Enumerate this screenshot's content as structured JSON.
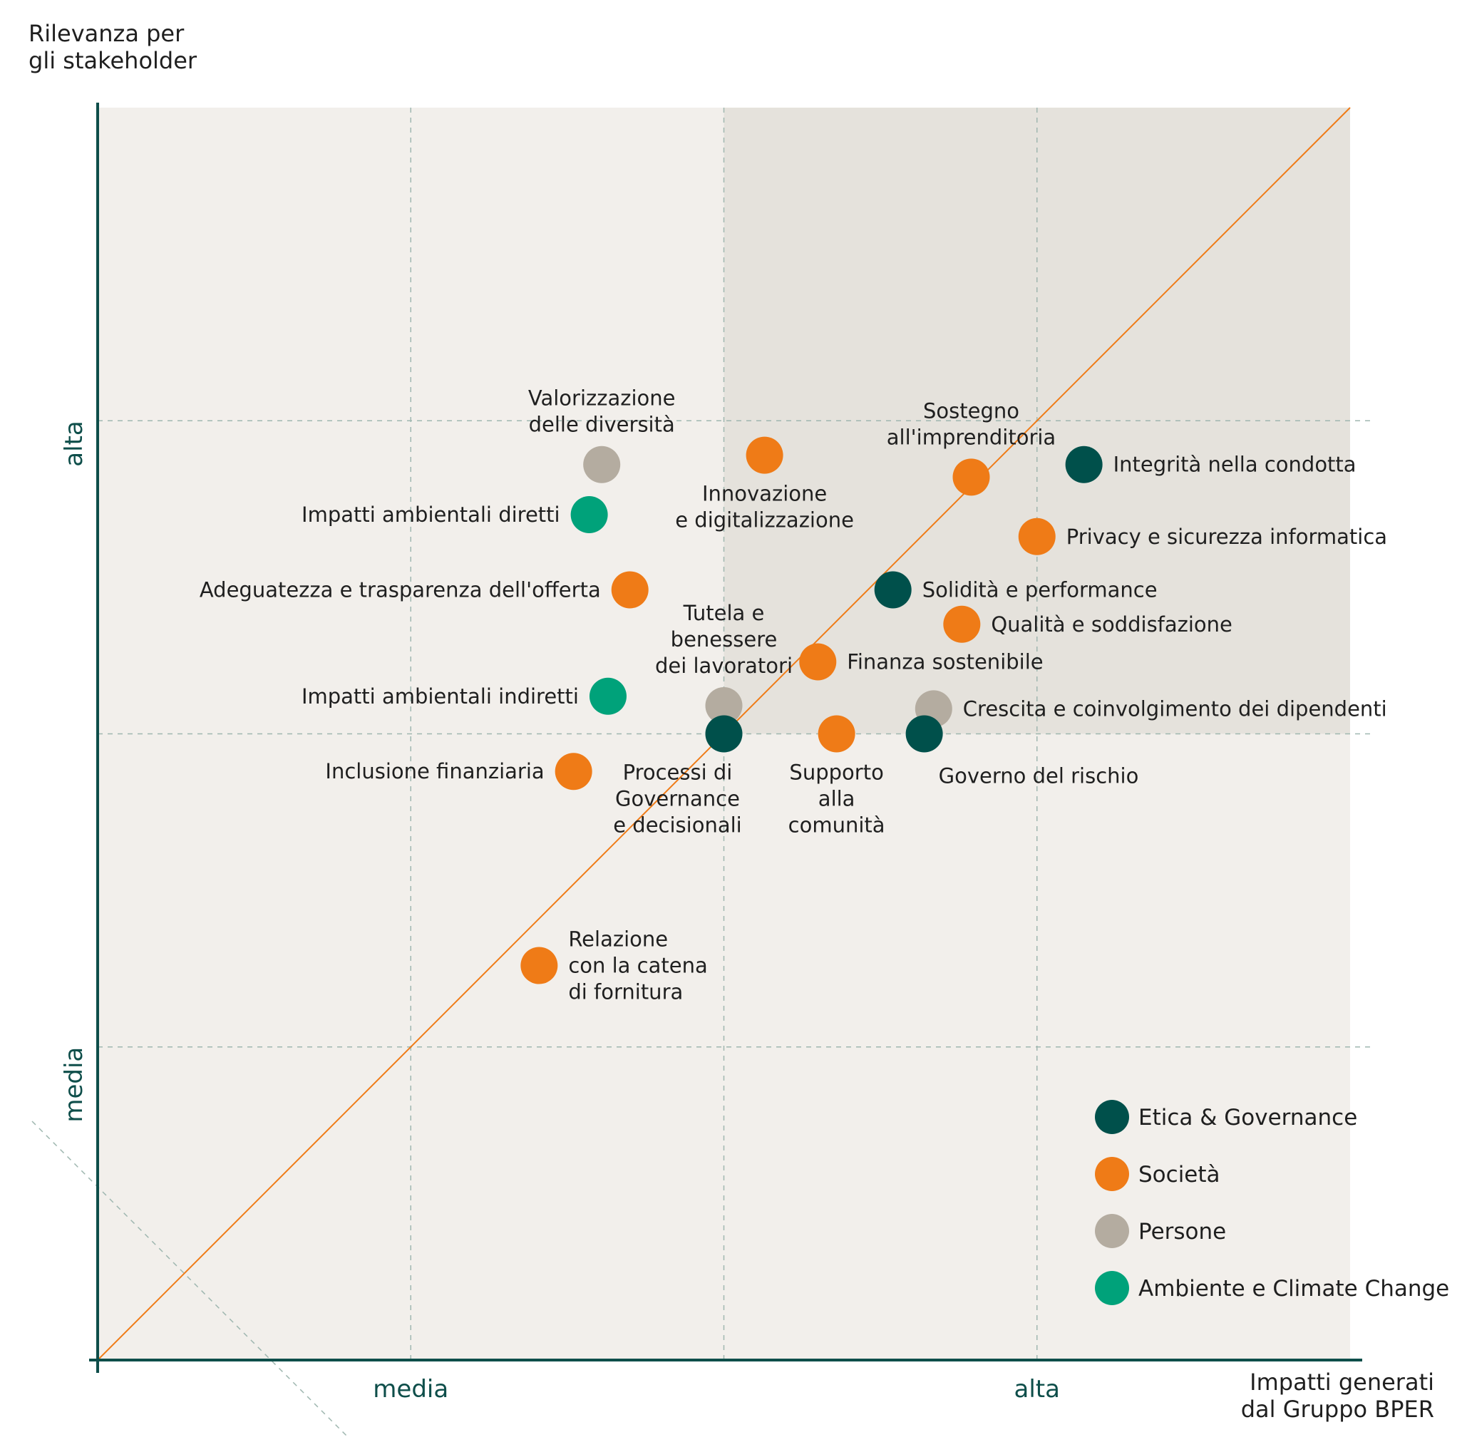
{
  "chart_data": {
    "type": "scatter",
    "title": "",
    "ylabel": "Rilevanza per\ngli stakeholder",
    "xlabel": "Impatti generati\ndal Gruppo BPER",
    "x_ticks": [
      {
        "value": 1,
        "label": "media"
      },
      {
        "value": 3,
        "label": "alta"
      }
    ],
    "y_ticks": [
      {
        "value": 1,
        "label": "media"
      },
      {
        "value": 3,
        "label": "alta"
      }
    ],
    "xlim": [
      0,
      4
    ],
    "ylim": [
      0,
      4
    ],
    "grid": true,
    "diagonal_reference_line": true,
    "highlighted_quadrant": "x>=2 and y>=2",
    "legend_position": "bottom-right",
    "categories": [
      {
        "name": "Etica & Governance",
        "color": "#00504b"
      },
      {
        "name": "Società",
        "color": "#ef7b17"
      },
      {
        "name": "Persone",
        "color": "#b4aca0"
      },
      {
        "name": "Ambiente e Climate Change",
        "color": "#00a27a"
      }
    ],
    "points": [
      {
        "label": "Valorizzazione\ndelle diversità",
        "category": "Persone",
        "x": 1.61,
        "y": 2.86,
        "label_pos": "above"
      },
      {
        "label": "Impatti ambientali diretti",
        "category": "Ambiente e Climate Change",
        "x": 1.57,
        "y": 2.7,
        "label_pos": "left"
      },
      {
        "label": "Adeguatezza e trasparenza dell'offerta",
        "category": "Società",
        "x": 1.7,
        "y": 2.46,
        "label_pos": "left"
      },
      {
        "label": "Impatti ambientali indiretti",
        "category": "Ambiente e Climate Change",
        "x": 1.63,
        "y": 2.12,
        "label_pos": "left"
      },
      {
        "label": "Inclusione finanziaria",
        "category": "Società",
        "x": 1.52,
        "y": 1.88,
        "label_pos": "left"
      },
      {
        "label": "Relazione\ncon la catena\ndi fornitura",
        "category": "Società",
        "x": 1.41,
        "y": 1.26,
        "label_pos": "right"
      },
      {
        "label": "Innovazione\ne digitalizzazione",
        "category": "Società",
        "x": 2.13,
        "y": 2.89,
        "label_pos": "below"
      },
      {
        "label": "Sostegno\nall'imprenditoria",
        "category": "Società",
        "x": 2.79,
        "y": 2.82,
        "label_pos": "above"
      },
      {
        "label": "Integrità nella condotta",
        "category": "Etica & Governance",
        "x": 3.15,
        "y": 2.86,
        "label_pos": "right"
      },
      {
        "label": "Privacy e sicurezza informatica",
        "category": "Società",
        "x": 3.0,
        "y": 2.63,
        "label_pos": "right"
      },
      {
        "label": "Solidità e performance",
        "category": "Etica & Governance",
        "x": 2.54,
        "y": 2.46,
        "label_pos": "right"
      },
      {
        "label": "Qualità e soddisfazione",
        "category": "Società",
        "x": 2.76,
        "y": 2.35,
        "label_pos": "right"
      },
      {
        "label": "Finanza sostenibile",
        "category": "Società",
        "x": 2.3,
        "y": 2.23,
        "label_pos": "right"
      },
      {
        "label": "Tutela e\nbenessere\ndei lavoratori",
        "category": "Persone",
        "x": 2.0,
        "y": 2.09,
        "label_pos": "above"
      },
      {
        "label": "Crescita e coinvolgimento dei dipendenti",
        "category": "Persone",
        "x": 2.67,
        "y": 2.08,
        "label_pos": "right"
      },
      {
        "label": "Processi di\nGovernance\ne decisionali",
        "category": "Etica & Governance",
        "x": 2.0,
        "y": 2.0,
        "label_pos": "below-left"
      },
      {
        "label": "Supporto\nalla\ncomunità",
        "category": "Società",
        "x": 2.36,
        "y": 2.0,
        "label_pos": "below"
      },
      {
        "label": "Governo del rischio",
        "category": "Etica & Governance",
        "x": 2.64,
        "y": 2.0,
        "label_pos": "below-right"
      }
    ]
  }
}
